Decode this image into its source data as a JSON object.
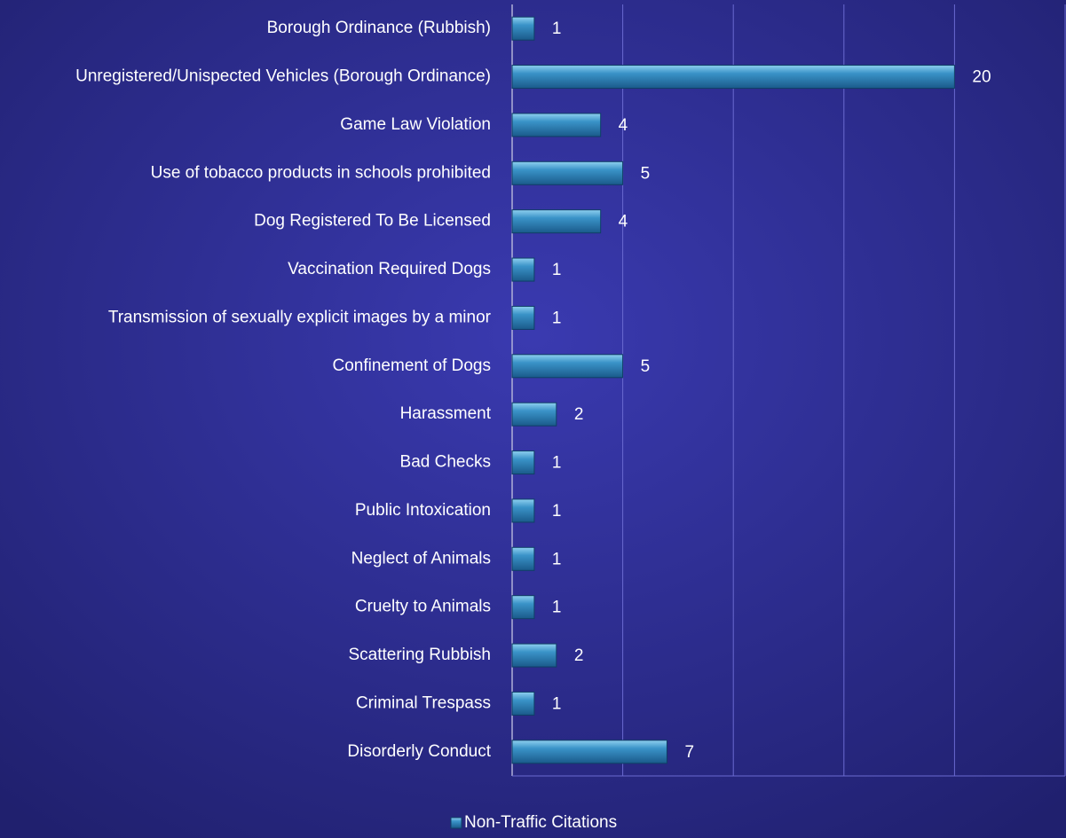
{
  "chart_data": {
    "type": "bar",
    "orientation": "horizontal",
    "categories": [
      "Borough Ordinance (Rubbish)",
      "Unregistered/Unispected Vehicles (Borough Ordinance)",
      "Game Law Violation",
      "Use of tobacco products in schools prohibited",
      "Dog Registered To Be Licensed",
      "Vaccination Required Dogs",
      "Transmission of sexually explicit images by a minor",
      "Confinement of Dogs",
      "Harassment",
      "Bad Checks",
      "Public Intoxication",
      "Neglect of Animals",
      "Cruelty to Animals",
      "Scattering Rubbish",
      "Criminal Trespass",
      "Disorderly Conduct"
    ],
    "series": [
      {
        "name": "Non-Traffic Citations",
        "color": "#2b7fb8",
        "values": [
          1,
          20,
          4,
          5,
          4,
          1,
          1,
          5,
          2,
          1,
          1,
          1,
          1,
          2,
          1,
          7
        ]
      }
    ],
    "xlim": [
      0,
      25
    ],
    "xticks": [
      0,
      5,
      10,
      15,
      20,
      25
    ],
    "grid": true,
    "legend": "bottom"
  }
}
